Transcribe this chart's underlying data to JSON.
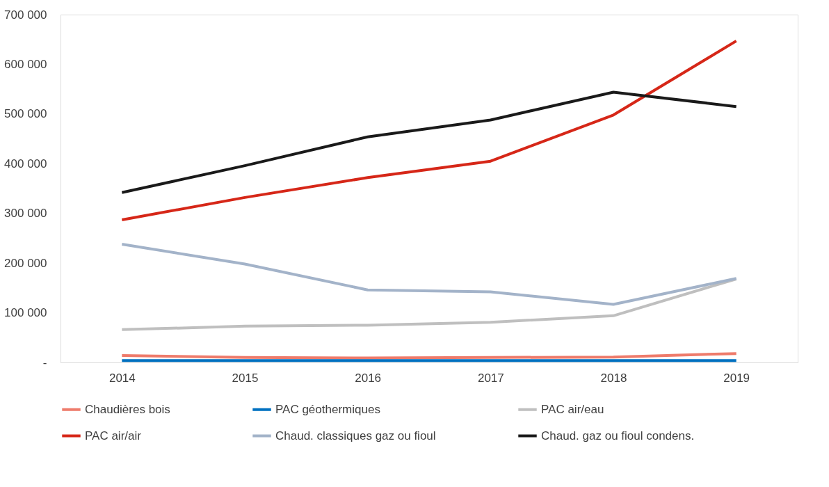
{
  "chart_data": {
    "type": "line",
    "categories": [
      "2014",
      "2015",
      "2016",
      "2017",
      "2018",
      "2019"
    ],
    "series": [
      {
        "name": "Chaudières bois",
        "color": "#ee7b6b",
        "values": [
          14000,
          10000,
          9000,
          10000,
          11000,
          18000
        ]
      },
      {
        "name": "PAC géothermiques",
        "color": "#0070c0",
        "values": [
          4000,
          4000,
          4000,
          4000,
          4000,
          4000
        ]
      },
      {
        "name": "PAC air/eau",
        "color": "#bfbfbf",
        "values": [
          66000,
          73000,
          75000,
          81000,
          94000,
          168000
        ]
      },
      {
        "name": "PAC air/air",
        "color": "#d62718",
        "values": [
          287000,
          332000,
          372000,
          405000,
          498000,
          647000
        ]
      },
      {
        "name": "Chaud. classiques gaz ou fioul",
        "color": "#a3b3c9",
        "values": [
          238000,
          198000,
          146000,
          142000,
          117000,
          169000
        ]
      },
      {
        "name": "Chaud. gaz ou fioul condens.",
        "color": "#1a1a1a",
        "values": [
          342000,
          396000,
          454000,
          488000,
          544000,
          515000
        ]
      }
    ],
    "ylim": [
      0,
      700000
    ],
    "yticks": [
      {
        "value": 0,
        "label": "-"
      },
      {
        "value": 100000,
        "label": "100 000"
      },
      {
        "value": 200000,
        "label": "200 000"
      },
      {
        "value": 300000,
        "label": "300 000"
      },
      {
        "value": 400000,
        "label": "400 000"
      },
      {
        "value": 500000,
        "label": "500 000"
      },
      {
        "value": 600000,
        "label": "600 000"
      },
      {
        "value": 700000,
        "label": "700 000"
      }
    ],
    "grid": false,
    "legend": "bottom",
    "marker": "none",
    "line_style": "solid"
  }
}
